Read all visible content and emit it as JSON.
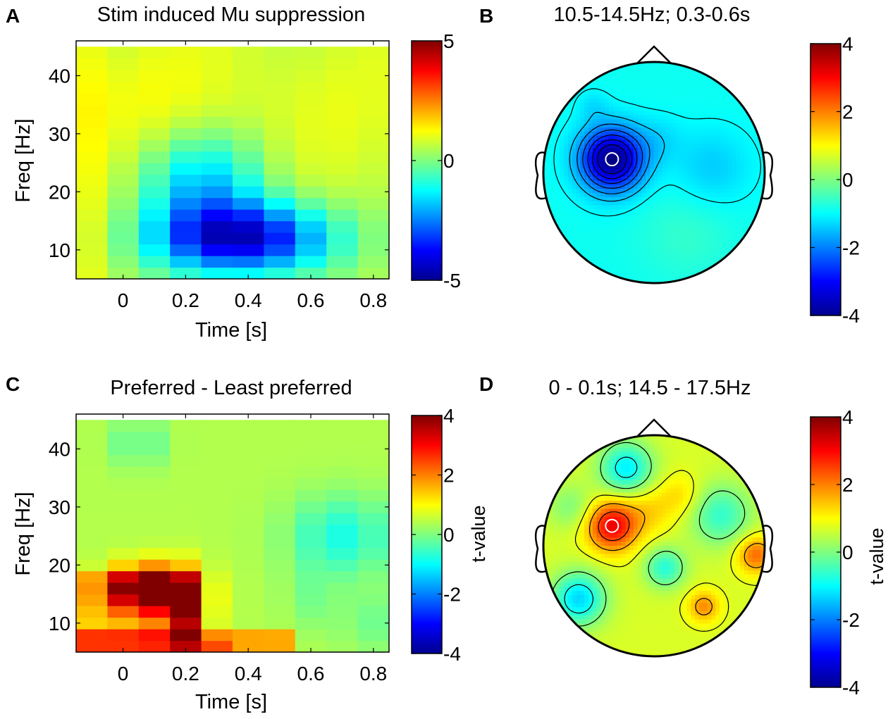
{
  "figure": {
    "panel_letters": [
      "A",
      "B",
      "C",
      "D"
    ]
  },
  "chart_data": [
    {
      "panel": "A",
      "type": "heatmap",
      "title": "Stim induced Mu suppression",
      "xlabel": "Time [s]",
      "ylabel": "Freq [Hz]",
      "xlim": [
        -0.15,
        0.85
      ],
      "ylim": [
        5,
        46
      ],
      "xticks": [
        0,
        0.2,
        0.4,
        0.6,
        0.8
      ],
      "xtick_labels": [
        "0",
        "0.2",
        "0.4",
        "0.6",
        "0.8"
      ],
      "yticks": [
        10,
        20,
        30,
        40
      ],
      "ytick_labels": [
        "10",
        "20",
        "30",
        "40"
      ],
      "x_bins": [
        -0.1,
        0.0,
        0.1,
        0.2,
        0.3,
        0.4,
        0.5,
        0.6,
        0.7,
        0.8
      ],
      "y_bins": [
        6,
        8,
        10,
        12,
        14,
        16,
        18,
        20,
        22,
        24,
        26,
        28,
        30,
        32,
        34,
        36,
        38,
        40,
        42,
        44
      ],
      "colorbar": {
        "min": -5,
        "max": 5,
        "ticks": [
          5,
          0,
          -5
        ],
        "tick_labels": [
          "5",
          "0",
          "-5"
        ],
        "label": ""
      },
      "colormap": "jet"
    },
    {
      "panel": "B",
      "type": "topoplot",
      "title": "10.5-14.5Hz; 0.3-0.6s",
      "colorbar": {
        "min": -4,
        "max": 4,
        "ticks": [
          4,
          2,
          0,
          -2,
          -4
        ],
        "tick_labels": [
          "4",
          "2",
          "0",
          "-2",
          "-4"
        ],
        "label": ""
      },
      "colormap": "jet",
      "background_value": -0.9,
      "sources": [
        {
          "x": -0.38,
          "y": 0.12,
          "amp": -3.1,
          "sigma": 0.2
        },
        {
          "x": 0.52,
          "y": 0.04,
          "amp": -0.5,
          "sigma": 0.25
        },
        {
          "x": -0.55,
          "y": 0.6,
          "amp": -0.3,
          "sigma": 0.1
        },
        {
          "x": 0.05,
          "y": 0.3,
          "amp": -0.3,
          "sigma": 0.15
        },
        {
          "x": 0.3,
          "y": -0.55,
          "amp": 0.3,
          "sigma": 0.3
        }
      ],
      "contour_levels": [
        -3.4,
        -3.0,
        -2.6,
        -2.2,
        -1.8,
        -1.4,
        -1.0,
        -0.6
      ],
      "marker_value": -3.6
    },
    {
      "panel": "C",
      "type": "heatmap",
      "title": "Preferred - Least preferred",
      "xlabel": "Time [s]",
      "ylabel": "Freq [Hz]",
      "xlim": [
        -0.15,
        0.85
      ],
      "ylim": [
        5,
        46
      ],
      "xticks": [
        0,
        0.2,
        0.4,
        0.6,
        0.8
      ],
      "xtick_labels": [
        "0",
        "0.2",
        "0.4",
        "0.6",
        "0.8"
      ],
      "yticks": [
        10,
        20,
        30,
        40
      ],
      "ytick_labels": [
        "10",
        "20",
        "30",
        "40"
      ],
      "x_bins": [
        -0.1,
        0.0,
        0.1,
        0.2,
        0.3,
        0.4,
        0.5,
        0.6,
        0.7,
        0.8
      ],
      "y_bins": [
        6,
        8,
        10,
        12,
        14,
        16,
        18,
        20,
        22,
        24,
        26,
        28,
        30,
        32,
        34,
        36,
        38,
        40,
        42,
        44
      ],
      "colorbar": {
        "min": -4,
        "max": 4,
        "ticks": [
          4,
          2,
          0,
          -2,
          -4
        ],
        "tick_labels": [
          "4",
          "2",
          "0",
          "-2",
          "-4"
        ],
        "label": "t-value"
      },
      "colormap": "jet"
    },
    {
      "panel": "D",
      "type": "topoplot",
      "title": "0 - 0.1s; 14.5 - 17.5Hz",
      "colorbar": {
        "min": -4,
        "max": 4,
        "ticks": [
          4,
          2,
          0,
          -2,
          -4
        ],
        "tick_labels": [
          "4",
          "2",
          "0",
          "-2",
          "-4"
        ],
        "label": "t-value"
      },
      "colormap": "jet",
      "background_value": 0.7,
      "sources": [
        {
          "x": -0.38,
          "y": 0.18,
          "amp": 2.4,
          "sigma": 0.16
        },
        {
          "x": -0.05,
          "y": 0.32,
          "amp": 0.6,
          "sigma": 0.16
        },
        {
          "x": 0.25,
          "y": 0.45,
          "amp": 0.6,
          "sigma": 0.14
        },
        {
          "x": -0.25,
          "y": 0.7,
          "amp": -1.8,
          "sigma": 0.17
        },
        {
          "x": -0.68,
          "y": -0.48,
          "amp": -2.0,
          "sigma": 0.17
        },
        {
          "x": 0.1,
          "y": -0.2,
          "amp": -1.4,
          "sigma": 0.13
        },
        {
          "x": 0.45,
          "y": -0.55,
          "amp": 1.2,
          "sigma": 0.1
        },
        {
          "x": 0.6,
          "y": 0.28,
          "amp": -1.3,
          "sigma": 0.2
        },
        {
          "x": 0.92,
          "y": -0.08,
          "amp": 1.5,
          "sigma": 0.12
        },
        {
          "x": -0.75,
          "y": 0.35,
          "amp": -0.7,
          "sigma": 0.15
        }
      ],
      "contour_levels": [
        -1.6,
        -0.8,
        0.0,
        0.8,
        1.6,
        2.4
      ],
      "marker_value": 3.2
    }
  ]
}
